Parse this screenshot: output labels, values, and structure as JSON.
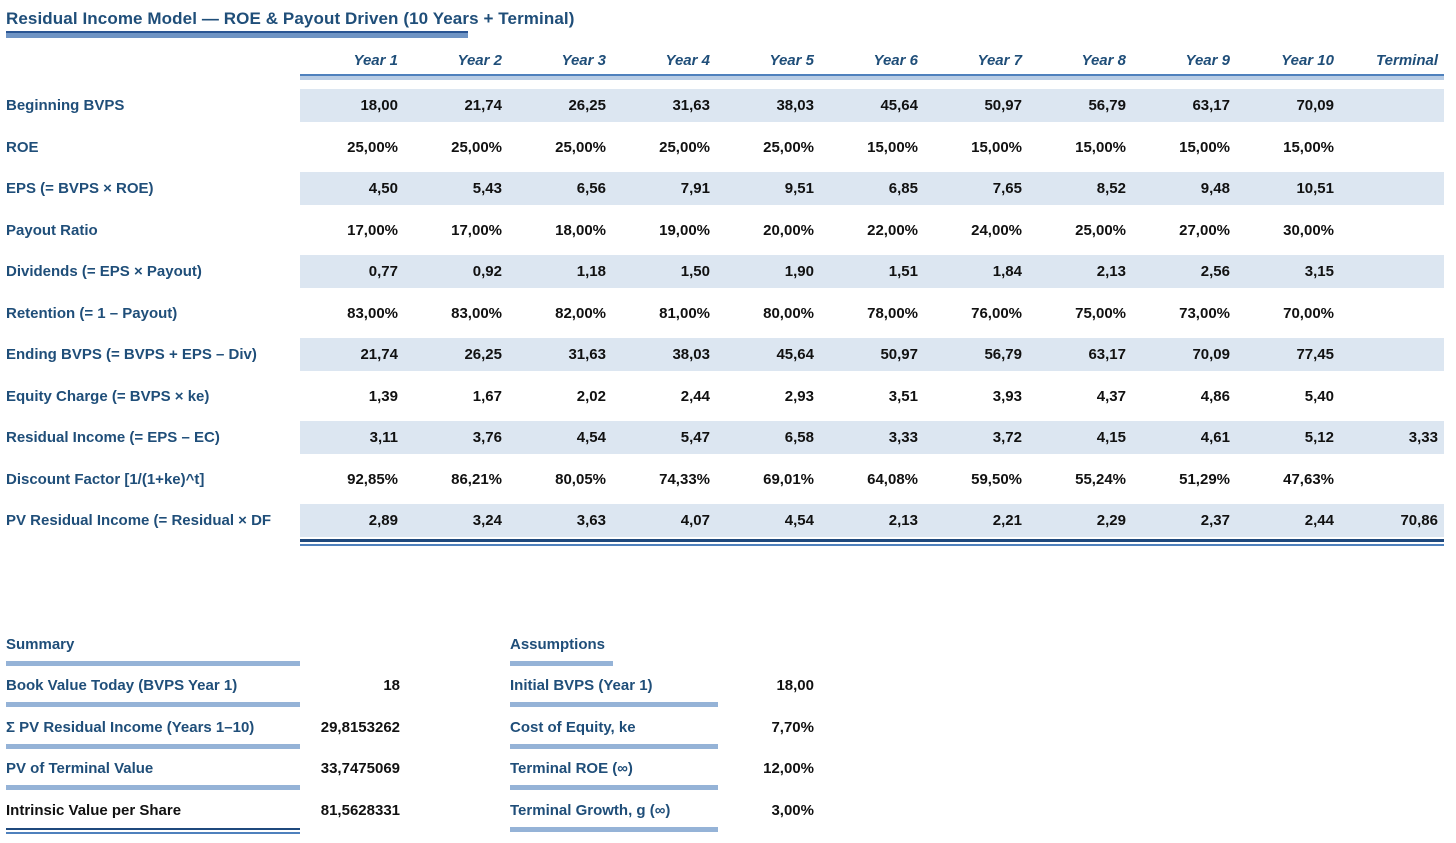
{
  "title": "Residual Income Model — ROE & Payout Driven (10 Years + Terminal)",
  "table": {
    "columns": [
      "Year 1",
      "Year 2",
      "Year 3",
      "Year 4",
      "Year 5",
      "Year 6",
      "Year 7",
      "Year 8",
      "Year 9",
      "Year 10",
      "Terminal"
    ],
    "rows": [
      {
        "label": "Beginning BVPS",
        "values": [
          "18,00",
          "21,74",
          "26,25",
          "31,63",
          "38,03",
          "45,64",
          "50,97",
          "56,79",
          "63,17",
          "70,09",
          ""
        ]
      },
      {
        "label": "ROE",
        "values": [
          "25,00%",
          "25,00%",
          "25,00%",
          "25,00%",
          "25,00%",
          "15,00%",
          "15,00%",
          "15,00%",
          "15,00%",
          "15,00%",
          ""
        ]
      },
      {
        "label": "EPS (= BVPS × ROE)",
        "values": [
          "4,50",
          "5,43",
          "6,56",
          "7,91",
          "9,51",
          "6,85",
          "7,65",
          "8,52",
          "9,48",
          "10,51",
          ""
        ]
      },
      {
        "label": "Payout Ratio",
        "values": [
          "17,00%",
          "17,00%",
          "18,00%",
          "19,00%",
          "20,00%",
          "22,00%",
          "24,00%",
          "25,00%",
          "27,00%",
          "30,00%",
          ""
        ]
      },
      {
        "label": "Dividends (= EPS × Payout)",
        "values": [
          "0,77",
          "0,92",
          "1,18",
          "1,50",
          "1,90",
          "1,51",
          "1,84",
          "2,13",
          "2,56",
          "3,15",
          ""
        ]
      },
      {
        "label": "Retention (= 1 – Payout)",
        "values": [
          "83,00%",
          "83,00%",
          "82,00%",
          "81,00%",
          "80,00%",
          "78,00%",
          "76,00%",
          "75,00%",
          "73,00%",
          "70,00%",
          ""
        ]
      },
      {
        "label": "Ending BVPS (= BVPS + EPS – Div)",
        "values": [
          "21,74",
          "26,25",
          "31,63",
          "38,03",
          "45,64",
          "50,97",
          "56,79",
          "63,17",
          "70,09",
          "77,45",
          ""
        ]
      },
      {
        "label": "Equity Charge (= BVPS × ke)",
        "values": [
          "1,39",
          "1,67",
          "2,02",
          "2,44",
          "2,93",
          "3,51",
          "3,93",
          "4,37",
          "4,86",
          "5,40",
          ""
        ]
      },
      {
        "label": "Residual Income (= EPS – EC)",
        "values": [
          "3,11",
          "3,76",
          "4,54",
          "5,47",
          "6,58",
          "3,33",
          "3,72",
          "4,15",
          "4,61",
          "5,12",
          "3,33"
        ]
      },
      {
        "label": "Discount Factor [1/(1+ke)^t]",
        "values": [
          "92,85%",
          "86,21%",
          "80,05%",
          "74,33%",
          "69,01%",
          "64,08%",
          "59,50%",
          "55,24%",
          "51,29%",
          "47,63%",
          ""
        ]
      },
      {
        "label": "PV Residual Income (= Residual × DF",
        "values": [
          "2,89",
          "3,24",
          "3,63",
          "4,07",
          "4,54",
          "2,13",
          "2,21",
          "2,29",
          "2,37",
          "2,44",
          "70,86"
        ]
      }
    ]
  },
  "summary": {
    "heading": "Summary",
    "rows": [
      {
        "label": "Book Value Today (BVPS Year 1)",
        "value": "18"
      },
      {
        "label": "Σ PV Residual Income (Years 1–10)",
        "value": "29,8153262"
      },
      {
        "label": "PV of Terminal Value",
        "value": "33,7475069"
      },
      {
        "label": "Intrinsic Value per Share",
        "value": "81,5628331"
      }
    ]
  },
  "assumptions": {
    "heading": "Assumptions",
    "rows": [
      {
        "label": "Initial BVPS (Year 1)",
        "value": "18,00"
      },
      {
        "label": "Cost of Equity, ke",
        "value": "7,70%"
      },
      {
        "label": "Terminal ROE (∞)",
        "value": "12,00%"
      },
      {
        "label": "Terminal Growth, g (∞)",
        "value": "3,00%"
      }
    ]
  },
  "colors": {
    "label_blue": "#1f4e79",
    "band_fill": "#dce6f1",
    "underline_bar": "#95b3d7",
    "rule_dark": "#4f81bd",
    "rule_light": "#b8cce4",
    "double_line_dark": "#1f497d",
    "value_text": "#111111"
  }
}
